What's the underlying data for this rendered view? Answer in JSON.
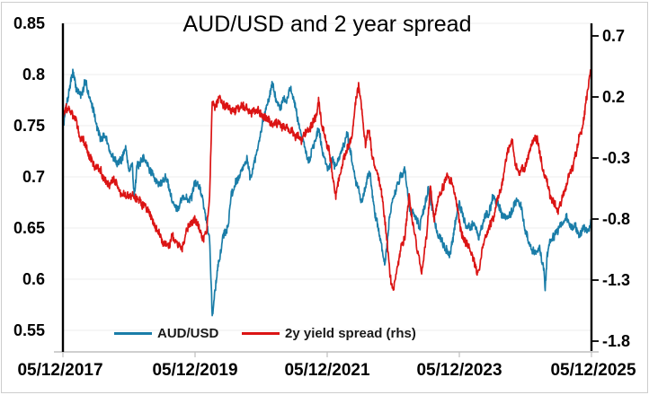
{
  "title": "AUD/USD and 2 year spread",
  "legend": [
    {
      "label": "AUD/USD",
      "color": "#1a7da8"
    },
    {
      "label": "2y yield spread (rhs)",
      "color": "#db1414"
    }
  ],
  "left_axis": {
    "ticks": [
      "0.85",
      "0.8",
      "0.75",
      "0.7",
      "0.65",
      "0.6",
      "0.55"
    ]
  },
  "right_axis": {
    "ticks": [
      "0.7",
      "0.2",
      "-0.3",
      "-0.8",
      "-1.3",
      "-1.8"
    ]
  },
  "x_axis": {
    "ticks": [
      "05/12/2017",
      "05/12/2019",
      "05/12/2021",
      "05/12/2023",
      "05/12/2025"
    ]
  },
  "colors": {
    "grid": "#ededed",
    "axis_black": "#000000",
    "axis_gray": "#bfbfbf",
    "background": "#ffffff"
  },
  "chart_data": {
    "type": "line",
    "title": "AUD/USD and 2 year spread",
    "x_unit": "years since 05/12/2017",
    "x_range": [
      0,
      8
    ],
    "x_tick_dates": [
      "05/12/2017",
      "05/12/2019",
      "05/12/2021",
      "05/12/2023",
      "05/12/2025"
    ],
    "grid": "horizontal-only",
    "legend_position": "bottom-inside",
    "left_ylim": [
      0.53,
      0.85
    ],
    "right_ylim": [
      -1.8,
      0.7
    ],
    "series": [
      {
        "name": "AUD/USD",
        "axis": "left",
        "color": "#1a7da8",
        "noise_fast": 0.0035,
        "noise_walk": 0.0016,
        "seed": 7,
        "anchors": [
          [
            0.0,
            0.75
          ],
          [
            0.05,
            0.77
          ],
          [
            0.1,
            0.79
          ],
          [
            0.15,
            0.808
          ],
          [
            0.2,
            0.79
          ],
          [
            0.28,
            0.781
          ],
          [
            0.35,
            0.792
          ],
          [
            0.42,
            0.772
          ],
          [
            0.5,
            0.756
          ],
          [
            0.58,
            0.74
          ],
          [
            0.65,
            0.738
          ],
          [
            0.72,
            0.724
          ],
          [
            0.8,
            0.712
          ],
          [
            0.88,
            0.718
          ],
          [
            0.95,
            0.73
          ],
          [
            1.0,
            0.705
          ],
          [
            1.05,
            0.712
          ],
          [
            1.08,
            0.686
          ],
          [
            1.12,
            0.712
          ],
          [
            1.25,
            0.712
          ],
          [
            1.35,
            0.702
          ],
          [
            1.45,
            0.69
          ],
          [
            1.55,
            0.7
          ],
          [
            1.65,
            0.684
          ],
          [
            1.75,
            0.672
          ],
          [
            1.82,
            0.684
          ],
          [
            1.9,
            0.678
          ],
          [
            2.0,
            0.69
          ],
          [
            2.08,
            0.686
          ],
          [
            2.15,
            0.664
          ],
          [
            2.22,
            0.64
          ],
          [
            2.26,
            0.567
          ],
          [
            2.3,
            0.597
          ],
          [
            2.35,
            0.62
          ],
          [
            2.42,
            0.645
          ],
          [
            2.5,
            0.655
          ],
          [
            2.55,
            0.685
          ],
          [
            2.62,
            0.698
          ],
          [
            2.7,
            0.712
          ],
          [
            2.78,
            0.722
          ],
          [
            2.83,
            0.705
          ],
          [
            2.9,
            0.718
          ],
          [
            3.0,
            0.742
          ],
          [
            3.08,
            0.77
          ],
          [
            3.17,
            0.795
          ],
          [
            3.22,
            0.776
          ],
          [
            3.3,
            0.77
          ],
          [
            3.38,
            0.772
          ],
          [
            3.45,
            0.784
          ],
          [
            3.5,
            0.772
          ],
          [
            3.58,
            0.745
          ],
          [
            3.65,
            0.73
          ],
          [
            3.72,
            0.714
          ],
          [
            3.8,
            0.736
          ],
          [
            3.87,
            0.752
          ],
          [
            3.95,
            0.722
          ],
          [
            4.0,
            0.712
          ],
          [
            4.08,
            0.718
          ],
          [
            4.15,
            0.712
          ],
          [
            4.22,
            0.725
          ],
          [
            4.3,
            0.748
          ],
          [
            4.38,
            0.72
          ],
          [
            4.45,
            0.695
          ],
          [
            4.52,
            0.682
          ],
          [
            4.6,
            0.692
          ],
          [
            4.65,
            0.7
          ],
          [
            4.72,
            0.665
          ],
          [
            4.8,
            0.64
          ],
          [
            4.87,
            0.612
          ],
          [
            4.93,
            0.648
          ],
          [
            5.0,
            0.676
          ],
          [
            5.08,
            0.69
          ],
          [
            5.17,
            0.708
          ],
          [
            5.25,
            0.672
          ],
          [
            5.32,
            0.662
          ],
          [
            5.4,
            0.648
          ],
          [
            5.48,
            0.67
          ],
          [
            5.53,
            0.688
          ],
          [
            5.6,
            0.665
          ],
          [
            5.68,
            0.644
          ],
          [
            5.78,
            0.634
          ],
          [
            5.85,
            0.628
          ],
          [
            5.92,
            0.65
          ],
          [
            6.0,
            0.678
          ],
          [
            6.07,
            0.655
          ],
          [
            6.15,
            0.648
          ],
          [
            6.22,
            0.658
          ],
          [
            6.3,
            0.64
          ],
          [
            6.38,
            0.66
          ],
          [
            6.45,
            0.665
          ],
          [
            6.52,
            0.675
          ],
          [
            6.6,
            0.668
          ],
          [
            6.7,
            0.66
          ],
          [
            6.78,
            0.67
          ],
          [
            6.85,
            0.683
          ],
          [
            6.93,
            0.672
          ],
          [
            7.0,
            0.648
          ],
          [
            7.08,
            0.63
          ],
          [
            7.15,
            0.625
          ],
          [
            7.22,
            0.628
          ],
          [
            7.27,
            0.608
          ],
          [
            7.3,
            0.588
          ],
          [
            7.33,
            0.615
          ],
          [
            7.38,
            0.632
          ],
          [
            7.45,
            0.64
          ],
          [
            7.52,
            0.648
          ],
          [
            7.6,
            0.655
          ],
          [
            7.68,
            0.647
          ],
          [
            7.75,
            0.652
          ],
          [
            7.82,
            0.645
          ],
          [
            7.88,
            0.65
          ],
          [
            7.94,
            0.643
          ],
          [
            8.0,
            0.656
          ]
        ]
      },
      {
        "name": "2y yield spread (rhs)",
        "axis": "right",
        "color": "#db1414",
        "noise_fast": 0.03,
        "noise_walk": 0.013,
        "seed": 13,
        "anchors": [
          [
            0.0,
            0.05
          ],
          [
            0.05,
            0.12
          ],
          [
            0.1,
            0.06
          ],
          [
            0.18,
            -0.02
          ],
          [
            0.25,
            -0.12
          ],
          [
            0.32,
            -0.2
          ],
          [
            0.4,
            -0.3
          ],
          [
            0.48,
            -0.38
          ],
          [
            0.55,
            -0.42
          ],
          [
            0.62,
            -0.5
          ],
          [
            0.7,
            -0.55
          ],
          [
            0.78,
            -0.5
          ],
          [
            0.85,
            -0.58
          ],
          [
            0.92,
            -0.62
          ],
          [
            1.0,
            -0.68
          ],
          [
            1.08,
            -0.62
          ],
          [
            1.15,
            -0.64
          ],
          [
            1.25,
            -0.7
          ],
          [
            1.32,
            -0.78
          ],
          [
            1.4,
            -0.86
          ],
          [
            1.5,
            -0.95
          ],
          [
            1.58,
            -1.02
          ],
          [
            1.65,
            -0.92
          ],
          [
            1.72,
            -1.0
          ],
          [
            1.8,
            -1.1
          ],
          [
            1.88,
            -0.95
          ],
          [
            1.95,
            -0.86
          ],
          [
            2.02,
            -0.82
          ],
          [
            2.08,
            -0.92
          ],
          [
            2.13,
            -1.0
          ],
          [
            2.18,
            -0.92
          ],
          [
            2.22,
            -0.65
          ],
          [
            2.26,
            0.1
          ],
          [
            2.3,
            0.04
          ],
          [
            2.36,
            0.12
          ],
          [
            2.42,
            0.08
          ],
          [
            2.5,
            0.14
          ],
          [
            2.58,
            0.1
          ],
          [
            2.65,
            0.15
          ],
          [
            2.72,
            0.12
          ],
          [
            2.8,
            0.07
          ],
          [
            2.88,
            0.05
          ],
          [
            2.95,
            0.1
          ],
          [
            3.02,
            0.12
          ],
          [
            3.1,
            0.1
          ],
          [
            3.18,
            0.06
          ],
          [
            3.25,
            0.03
          ],
          [
            3.32,
            -0.02
          ],
          [
            3.4,
            -0.04
          ],
          [
            3.48,
            -0.06
          ],
          [
            3.55,
            -0.1
          ],
          [
            3.62,
            -0.15
          ],
          [
            3.7,
            -0.13
          ],
          [
            3.77,
            -0.1
          ],
          [
            3.83,
            -0.04
          ],
          [
            3.87,
            0.1
          ],
          [
            3.91,
            -0.05
          ],
          [
            3.96,
            -0.18
          ],
          [
            4.02,
            -0.3
          ],
          [
            4.08,
            -0.48
          ],
          [
            4.13,
            -0.62
          ],
          [
            4.18,
            -0.45
          ],
          [
            4.25,
            -0.28
          ],
          [
            4.32,
            -0.18
          ],
          [
            4.38,
            -0.05
          ],
          [
            4.44,
            0.22
          ],
          [
            4.48,
            0.3
          ],
          [
            4.53,
            0.05
          ],
          [
            4.58,
            -0.18
          ],
          [
            4.63,
            -0.1
          ],
          [
            4.68,
            -0.35
          ],
          [
            4.75,
            -0.45
          ],
          [
            4.82,
            -0.6
          ],
          [
            4.88,
            -0.85
          ],
          [
            4.95,
            -1.3
          ],
          [
            5.0,
            -1.45
          ],
          [
            5.05,
            -1.28
          ],
          [
            5.12,
            -1.1
          ],
          [
            5.18,
            -0.95
          ],
          [
            5.24,
            -0.62
          ],
          [
            5.3,
            -0.85
          ],
          [
            5.37,
            -1.1
          ],
          [
            5.43,
            -1.27
          ],
          [
            5.5,
            -0.95
          ],
          [
            5.56,
            -0.55
          ],
          [
            5.62,
            -0.78
          ],
          [
            5.68,
            -0.62
          ],
          [
            5.75,
            -0.52
          ],
          [
            5.82,
            -0.42
          ],
          [
            5.88,
            -0.45
          ],
          [
            5.95,
            -0.65
          ],
          [
            6.02,
            -0.85
          ],
          [
            6.08,
            -0.95
          ],
          [
            6.18,
            -1.08
          ],
          [
            6.28,
            -1.22
          ],
          [
            6.38,
            -0.98
          ],
          [
            6.45,
            -0.88
          ],
          [
            6.52,
            -0.8
          ],
          [
            6.6,
            -0.65
          ],
          [
            6.68,
            -0.48
          ],
          [
            6.75,
            -0.28
          ],
          [
            6.8,
            -0.22
          ],
          [
            6.85,
            -0.4
          ],
          [
            6.9,
            -0.48
          ],
          [
            6.97,
            -0.38
          ],
          [
            7.05,
            -0.28
          ],
          [
            7.12,
            -0.18
          ],
          [
            7.18,
            -0.15
          ],
          [
            7.25,
            -0.32
          ],
          [
            7.32,
            -0.48
          ],
          [
            7.4,
            -0.62
          ],
          [
            7.48,
            -0.72
          ],
          [
            7.55,
            -0.62
          ],
          [
            7.62,
            -0.5
          ],
          [
            7.7,
            -0.38
          ],
          [
            7.78,
            -0.25
          ],
          [
            7.85,
            -0.08
          ],
          [
            7.9,
            0.08
          ],
          [
            7.95,
            0.28
          ],
          [
            8.0,
            0.45
          ]
        ]
      }
    ]
  }
}
